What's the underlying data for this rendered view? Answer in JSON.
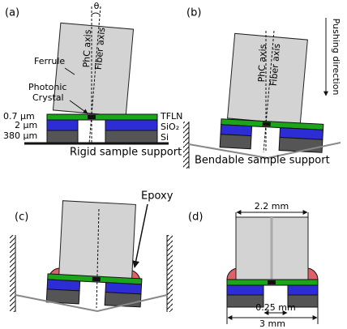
{
  "panels": {
    "a": {
      "label": "(a)",
      "angle": "θ",
      "phc_axis": "PhC axis",
      "fiber_axis": "Fiber axis",
      "ferrule": "Ferrule",
      "photonic_crystal": [
        "Photonic",
        "Crystal"
      ],
      "thicknesses": [
        "0.7 µm",
        "2 µm",
        "380 µm"
      ],
      "layers": [
        "TFLN",
        "SiO₂",
        "Si"
      ],
      "support": "Rigid sample support"
    },
    "b": {
      "label": "(b)",
      "phc_axis": "PhC axis",
      "fiber_axis": "Fiber axis",
      "pushing": "Pushing direction",
      "support": "Bendable sample support"
    },
    "c": {
      "label": "(c)",
      "epoxy": "Epoxy"
    },
    "d": {
      "label": "(d)",
      "ferrule_width": "2.2 mm",
      "gap_width": "0.25 mm",
      "chip_width": "3 mm"
    }
  }
}
